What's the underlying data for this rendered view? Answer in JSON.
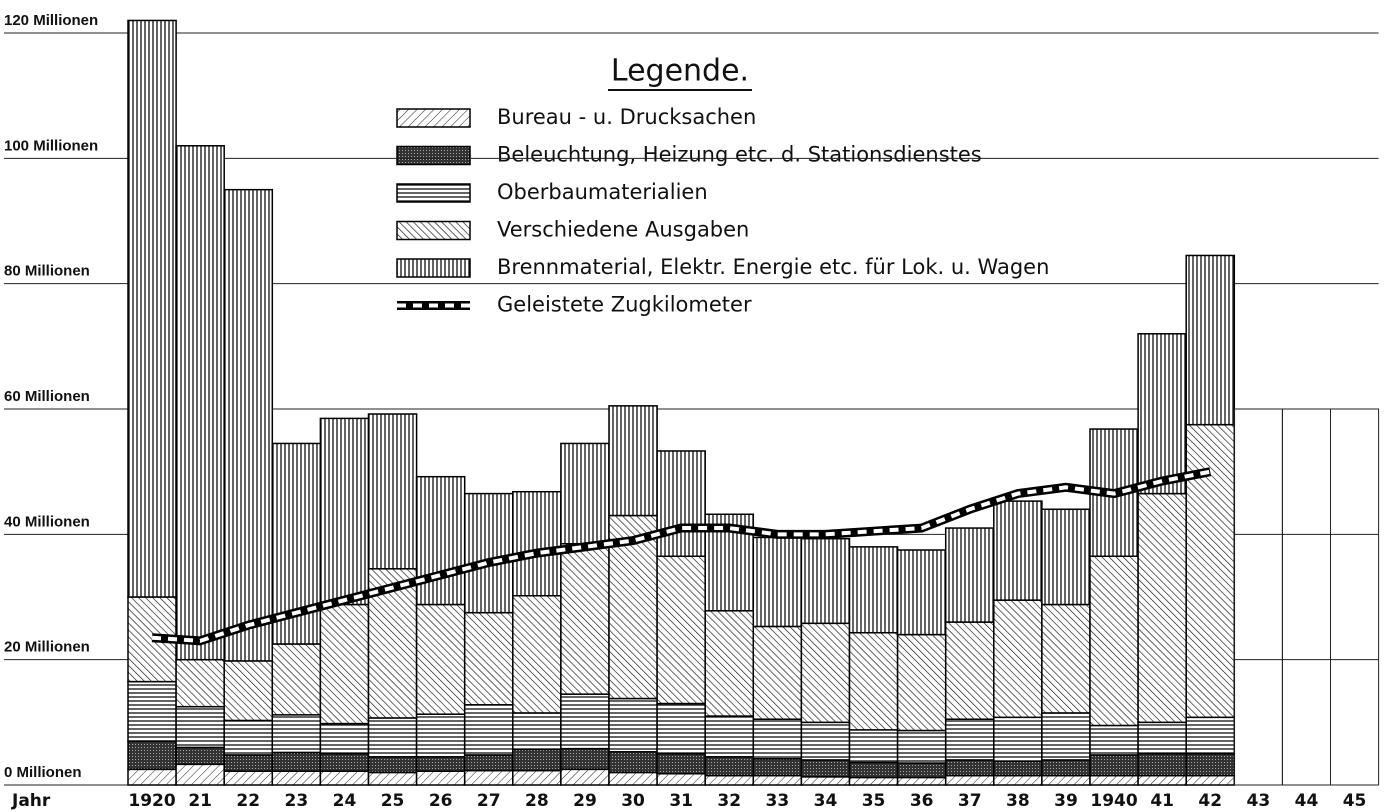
{
  "chart_data": {
    "type": "bar",
    "stacked": true,
    "xlabel": "Jahr",
    "categories": [
      "1920",
      "21",
      "22",
      "23",
      "24",
      "25",
      "26",
      "27",
      "28",
      "29",
      "30",
      "31",
      "32",
      "33",
      "34",
      "35",
      "36",
      "37",
      "38",
      "39",
      "1940",
      "41",
      "42",
      "43",
      "44",
      "45"
    ],
    "legend_title": "Legende.",
    "series": [
      {
        "name": "Bureau - u. Drucksachen",
        "color": "#000000",
        "values": [
          2.5,
          3.3,
          2.2,
          2.2,
          2.2,
          2,
          2.2,
          2.3,
          2.3,
          2.5,
          2,
          1.8,
          1.5,
          1.5,
          1.3,
          1.2,
          1.2,
          1.5,
          1.5,
          1.5,
          1.5,
          1.5,
          1.5,
          null,
          null,
          null
        ]
      },
      {
        "name": "Beleuchtung, Heizung etc. d. Stationsdienstes",
        "color": "#000000",
        "values": [
          4.5,
          2.7,
          2.6,
          3,
          2.8,
          2.5,
          2.3,
          2.5,
          3.4,
          3.3,
          3.3,
          3.2,
          3,
          2.7,
          2.7,
          2.4,
          2.3,
          2.5,
          2.3,
          2.5,
          3.3,
          3.5,
          3.5,
          null,
          null,
          null
        ]
      },
      {
        "name": "Oberbaumaterialien",
        "color": "#000000",
        "values": [
          9.5,
          6.5,
          5.5,
          6,
          4.8,
          6.2,
          6.8,
          8,
          5.8,
          8.7,
          8.5,
          8,
          6.5,
          6.3,
          6,
          5.2,
          5.2,
          6.5,
          7,
          7.5,
          4.7,
          5,
          5.8,
          null,
          null,
          null
        ]
      },
      {
        "name": "Verschiedene Ausgaben",
        "color": "#000000",
        "values": [
          13.5,
          7.5,
          9.5,
          11.3,
          19,
          23.8,
          17.5,
          14.7,
          18.7,
          24,
          29.2,
          23.5,
          16.8,
          14.8,
          15.8,
          15.5,
          15.3,
          15.5,
          18.7,
          17.3,
          27,
          36.5,
          46.7,
          null,
          null,
          null
        ]
      },
      {
        "name": "Brennmaterial, Elektr. Energie etc. für Lok. u. Wagen",
        "color": "#000000",
        "values": [
          92,
          82,
          75.2,
          32,
          29.7,
          24.7,
          20.4,
          19,
          16.6,
          16,
          17.5,
          16.8,
          15.4,
          14.2,
          13.5,
          13.7,
          13.5,
          15,
          15.8,
          15.2,
          20.3,
          25.5,
          27,
          null,
          null,
          null
        ]
      },
      {
        "name": "Geleistete Zugkilometer",
        "type": "line",
        "color": "#000000",
        "values": [
          23.5,
          23,
          25.5,
          27.5,
          29.5,
          31.5,
          33.5,
          35.5,
          37,
          38,
          39,
          41,
          41,
          40,
          40,
          40.5,
          41,
          44,
          46.5,
          47.5,
          46.5,
          48.5,
          50,
          null,
          null,
          null
        ]
      }
    ],
    "ylim": [
      0,
      124
    ],
    "yticks": [
      {
        "value": 0,
        "label": "0 Millionen"
      },
      {
        "value": 20,
        "label": "20 Millionen"
      },
      {
        "value": 40,
        "label": "40 Millionen"
      },
      {
        "value": 60,
        "label": "60 Millionen"
      },
      {
        "value": 80,
        "label": "80 Millionen"
      },
      {
        "value": 100,
        "label": "100 Millionen"
      },
      {
        "value": 120,
        "label": "120 Millionen"
      }
    ],
    "grid": true
  }
}
